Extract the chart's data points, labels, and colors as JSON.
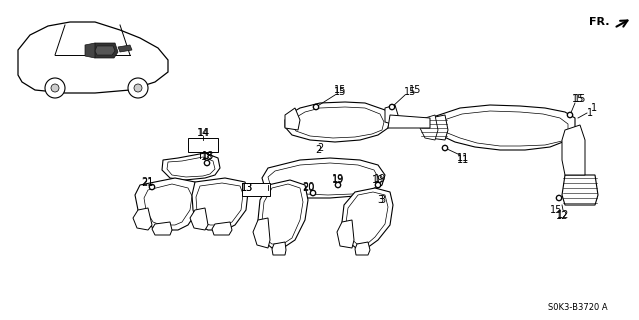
{
  "background_color": "#ffffff",
  "footer_text": "S0K3-B3720 A",
  "line_color": "#1a1a1a",
  "gray": "#888888",
  "darkgray": "#555555",
  "fr_label": "FR.",
  "label_fontsize": 7,
  "footer_fontsize": 6
}
